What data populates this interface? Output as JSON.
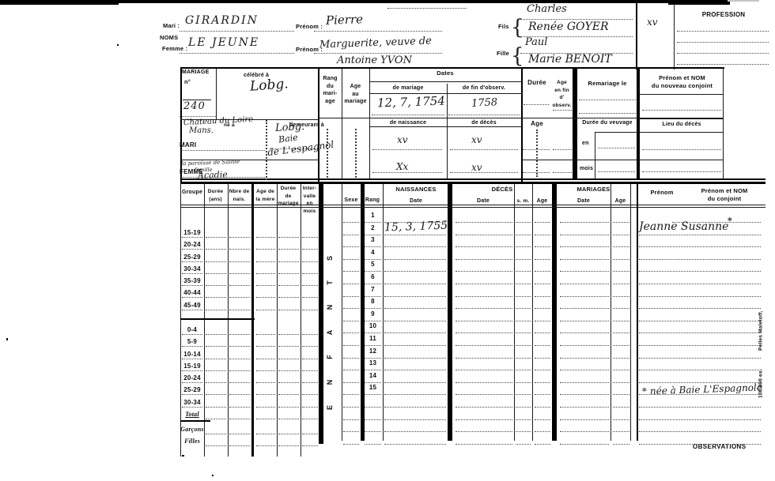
{
  "top": {
    "noms_label": "NOMS",
    "mari_label": "Mari :",
    "femme_label": "Femme :",
    "prenom_label": "Prénom :",
    "mari_nom": "GIRARDIN",
    "mari_prenom": "Pierre",
    "femme_nom": "LE JEUNE",
    "femme_prenom": "Marguerite, veuve de",
    "femme_prenom_2": "Antoine YVON",
    "fils_label": "Fils",
    "fille_label": "Fille",
    "brace": "{",
    "enfants": [
      "Charles",
      "Renée GOYER",
      "Paul",
      "Marie BENOIT"
    ],
    "profession_label": "PROFESSION",
    "profession_value": "xv"
  },
  "mariage": {
    "title": "MARIAGE",
    "no_label": "n°",
    "no_value": "240",
    "celebre_label": "célébré à",
    "celebre_value": "Lobg.",
    "ne_label": "né à",
    "demeurant_label": "demeurant à",
    "mari_label": "MARI",
    "femme_label": "FEMME",
    "mari_ne_1": "Chateau du Loire",
    "mari_ne_2": "Mans.",
    "mari_dem_1": "Lobg.",
    "mari_dem_2": "Baie",
    "mari_dem_3": "de L'espagnol",
    "femme_ne_1": "la paroisse de Sainte",
    "femme_ne_2": "famille",
    "femme_ne_3": "Acadie",
    "rang_lines": [
      "Rang",
      "du",
      "mari-",
      "age"
    ],
    "age_lines": [
      "Age",
      "au",
      "mariage"
    ],
    "dates_label": "Dates",
    "de_mariage_label": "de mariage",
    "fin_observ_label": "de fin d'observ.",
    "date_mariage_value": "12, 7, 1754",
    "fin_observ_value": "1758",
    "de_naissance_label": "de naissance",
    "de_deces_label": "de décès",
    "mari_naissance": "xv",
    "mari_deces": "xv",
    "femme_naissance": "Xx",
    "femme_deces": "xv",
    "duree_label": "Durée",
    "age_sub_label": "Age",
    "age_fin_lines": [
      "Age",
      "en fin",
      "d'",
      "observ."
    ],
    "remariage_label": "Remariage le",
    "veuvage_label": "Durée du veuvage",
    "en_label": "en",
    "mois_label": "mois",
    "conjoint_lines": [
      "Prénom et NOM",
      "du nouveau conjoint"
    ],
    "lieu_deces_label": "Lieu du décès"
  },
  "table": {
    "headers": {
      "groupe": "Groupe",
      "duree_lines": [
        "Durée",
        "(ans)"
      ],
      "nbre_lines": [
        "Nbre de",
        "nais."
      ],
      "age_mere_lines": [
        "Age de",
        "la mère"
      ],
      "duree_mar_lines": [
        "Durée",
        "de",
        "mariage"
      ],
      "intervalle_lines": [
        "Inter-",
        "valle en",
        "mois"
      ],
      "sexe": "Sexe",
      "rang": "Rang",
      "naissances": "NAISSANCES",
      "deces": "DÉCÈS",
      "mariages": "MARIAGES",
      "date": "Date",
      "sm": "s. m.",
      "age": "Age",
      "prenom": "Prénom",
      "conjoint_lines": [
        "Prénom et NOM",
        "du conjoint"
      ]
    },
    "groupes": [
      "15-19",
      "20-24",
      "25-29",
      "30-34",
      "35-39",
      "40-44",
      "45-49",
      "0-4",
      "5-9",
      "10-14",
      "15-19",
      "20-24",
      "25-29",
      "30-34",
      "Total",
      "Garçons",
      "Filles"
    ],
    "enfants_word": "ENFANTS",
    "rang_count": 15,
    "rows": 19,
    "entries": {
      "naissance_rang_2": "15, 3, 1755",
      "conjoint_rang_2": "Jeanne Susanne",
      "star": "*",
      "footnote": "* née à Baie L'Espagnole"
    },
    "observations_label": "OBSERVATIONS"
  },
  "imprint": {
    "credit": "Pelles Maletoff,",
    "tirage": "100.000 ex."
  }
}
